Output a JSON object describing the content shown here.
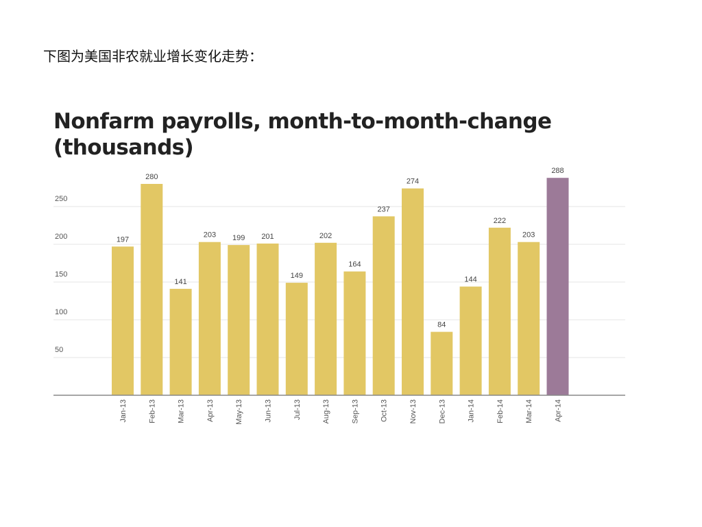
{
  "caption": "下图为美国非农就业增长变化走势：",
  "chart_data": {
    "type": "bar",
    "title_line1": "Nonfarm payrolls, month-to-month-change",
    "title_line2": "(thousands)",
    "categories": [
      "Jan-13",
      "Feb-13",
      "Mar-13",
      "Apr-13",
      "May-13",
      "Jun-13",
      "Jul-13",
      "Aug-13",
      "Sep-13",
      "Oct-13",
      "Nov-13",
      "Dec-13",
      "Jan-14",
      "Feb-14",
      "Mar-14",
      "Apr-14"
    ],
    "values": [
      197,
      280,
      141,
      203,
      199,
      201,
      149,
      202,
      164,
      237,
      274,
      84,
      144,
      222,
      203,
      288
    ],
    "yticks": [
      50,
      100,
      150,
      200,
      250
    ],
    "ylim": [
      0,
      300
    ],
    "grid": true,
    "colors": {
      "bar": "#e2c764",
      "highlight": "#9c7a98",
      "grid": "#e6e6e6",
      "axis": "#888888"
    },
    "highlight_index": 15
  }
}
